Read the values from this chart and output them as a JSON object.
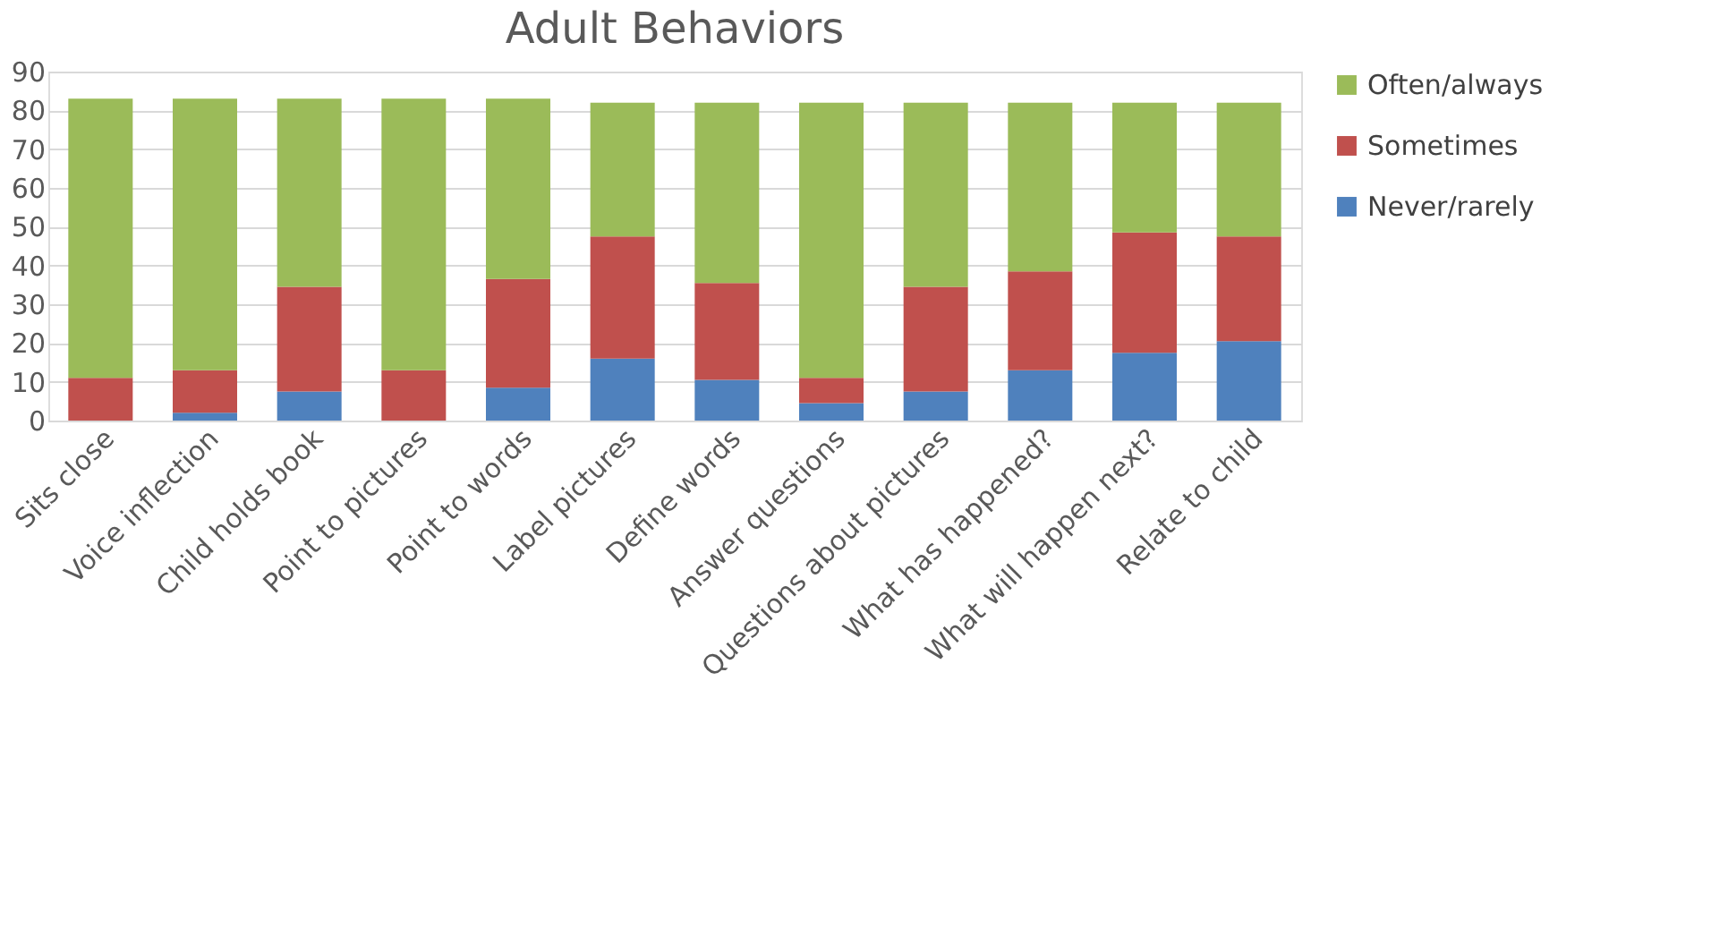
{
  "chart_data": {
    "type": "bar",
    "title": "Adult Behaviors",
    "stacked": true,
    "categories": [
      "Sits close",
      "Voice inflection",
      "Child holds book",
      "Point to pictures",
      "Point to words",
      "Label pictures",
      "Define words",
      "Answer questions",
      "Questions about pictures",
      "What has happened?",
      "What will happen next?",
      "Relate to child"
    ],
    "series": [
      {
        "name": "Never/rarely",
        "color": "#4f81bd",
        "values": [
          0,
          2,
          7.5,
          0,
          8.5,
          16,
          10.5,
          4.5,
          7.5,
          13,
          17.5,
          20.5
        ]
      },
      {
        "name": "Sometimes",
        "color": "#c0504d",
        "values": [
          11,
          11,
          27,
          13,
          28,
          31.5,
          25,
          6.5,
          27,
          25.5,
          31,
          27
        ]
      },
      {
        "name": "Often/always",
        "color": "#9bbb59",
        "values": [
          72,
          70,
          48.5,
          70,
          46.5,
          34.5,
          46.5,
          71,
          47.5,
          43.5,
          33.5,
          34.5
        ]
      }
    ],
    "ylim": [
      0,
      90
    ],
    "yticks": [
      0,
      10,
      20,
      30,
      40,
      50,
      60,
      70,
      80,
      90
    ],
    "grid": "y",
    "legend": "right"
  }
}
